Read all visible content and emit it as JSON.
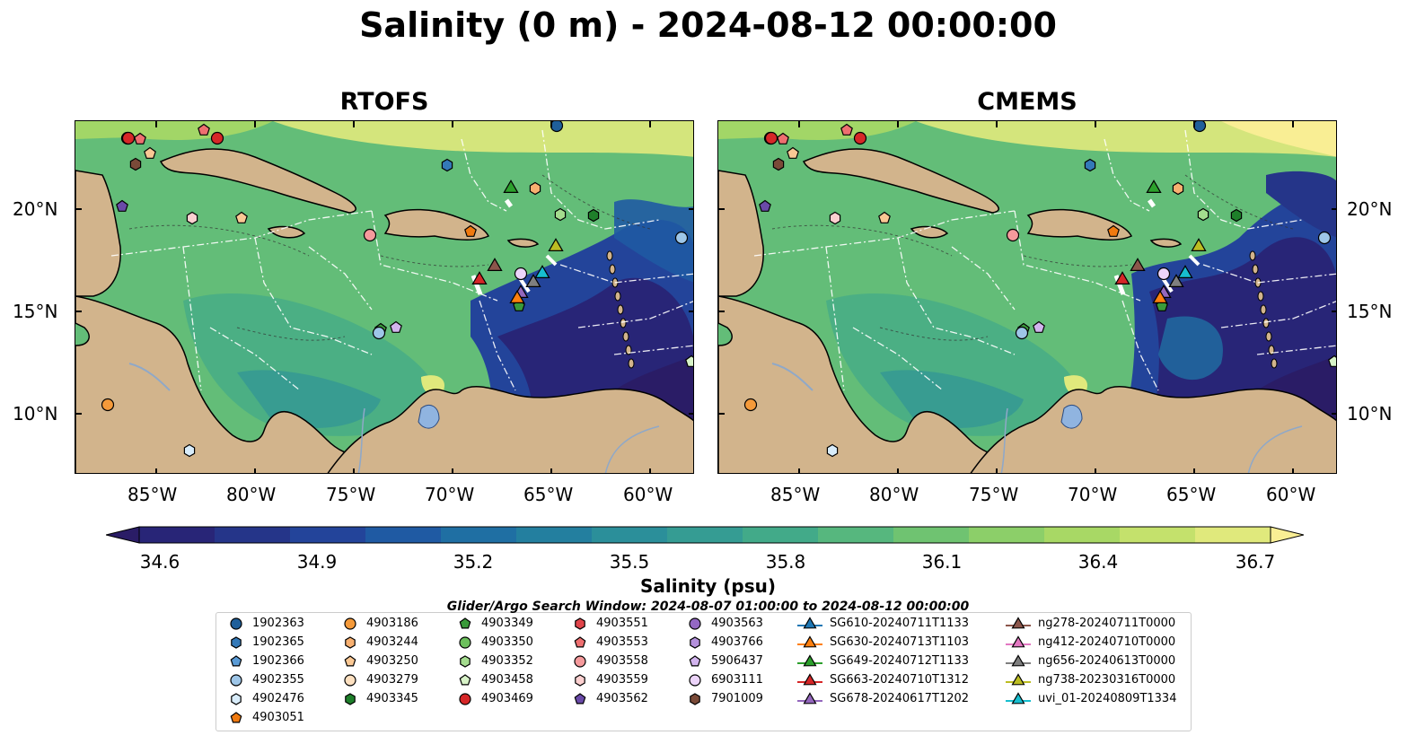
{
  "title": "Salinity (0 m) - 2024-08-12 00:00:00",
  "panels": [
    {
      "title": "RTOFS"
    },
    {
      "title": "CMEMS"
    }
  ],
  "lat_ticks": [
    "20°N",
    "15°N",
    "10°N"
  ],
  "lon_ticks": [
    "85°W",
    "80°W",
    "75°W",
    "70°W",
    "65°W",
    "60°W"
  ],
  "colorbar": {
    "label": "Salinity (psu)",
    "ticks": [
      "34.6",
      "34.9",
      "35.2",
      "35.5",
      "35.8",
      "36.1",
      "36.4",
      "36.7"
    ],
    "colors": [
      "#2a1c66",
      "#282577",
      "#253589",
      "#23449a",
      "#1f5aa3",
      "#1f6fa3",
      "#237f9f",
      "#2b8f9a",
      "#359c93",
      "#42aa89",
      "#56b77e",
      "#6fc371",
      "#8ccf69",
      "#a8d865",
      "#c4e16c",
      "#e0e97c",
      "#f9ee94"
    ]
  },
  "legend": {
    "title": "Glider/Argo Search Window: 2024-08-07 01:00:00 to 2024-08-12 00:00:00",
    "items": [
      {
        "label": "1902363",
        "shape": "circle",
        "color": "#1f5f9a"
      },
      {
        "label": "1902365",
        "shape": "hexagon",
        "color": "#3479b8"
      },
      {
        "label": "1902366",
        "shape": "pentagon",
        "color": "#5a9bd6"
      },
      {
        "label": "4902355",
        "shape": "circle",
        "color": "#9ec6e8"
      },
      {
        "label": "4902476",
        "shape": "hexagon",
        "color": "#d8ecfa"
      },
      {
        "label": "4903051",
        "shape": "pentagon",
        "color": "#f07a10"
      },
      {
        "label": "4903186",
        "shape": "circle",
        "color": "#f59a3a"
      },
      {
        "label": "4903244",
        "shape": "hexagon",
        "color": "#f8b070"
      },
      {
        "label": "4903250",
        "shape": "pentagon",
        "color": "#fac894"
      },
      {
        "label": "4903279",
        "shape": "circle",
        "color": "#fde0c0"
      },
      {
        "label": "4903345",
        "shape": "hexagon",
        "color": "#1e7f2a"
      },
      {
        "label": "4903349",
        "shape": "pentagon",
        "color": "#3a9a3a"
      },
      {
        "label": "4903350",
        "shape": "circle",
        "color": "#6cc05c"
      },
      {
        "label": "4903352",
        "shape": "hexagon",
        "color": "#a4dc8e"
      },
      {
        "label": "4903458",
        "shape": "pentagon",
        "color": "#d8f3c8"
      },
      {
        "label": "4903469",
        "shape": "circle",
        "color": "#d62728"
      },
      {
        "label": "4903551",
        "shape": "hexagon",
        "color": "#e0444a"
      },
      {
        "label": "4903553",
        "shape": "pentagon",
        "color": "#ee6f70"
      },
      {
        "label": "4903558",
        "shape": "circle",
        "color": "#f59a9c"
      },
      {
        "label": "4903559",
        "shape": "hexagon",
        "color": "#fcd0d0"
      },
      {
        "label": "4903562",
        "shape": "pentagon",
        "color": "#6a4aa8"
      },
      {
        "label": "4903563",
        "shape": "circle",
        "color": "#9468c4"
      },
      {
        "label": "4903766",
        "shape": "hexagon",
        "color": "#b490dc"
      },
      {
        "label": "5906437",
        "shape": "pentagon",
        "color": "#d2b4ee"
      },
      {
        "label": "6903111",
        "shape": "circle",
        "color": "#ecd4fa"
      },
      {
        "label": "7901009",
        "shape": "hexagon",
        "color": "#7a4a38"
      },
      {
        "label": "SG610-20240711T1133",
        "shape": "triangle",
        "color": "#1f77b4"
      },
      {
        "label": "SG630-20240713T1103",
        "shape": "triangle",
        "color": "#ff7f0e"
      },
      {
        "label": "SG649-20240712T1133",
        "shape": "triangle",
        "color": "#2ca02c"
      },
      {
        "label": "SG663-20240710T1312",
        "shape": "triangle",
        "color": "#d62728"
      },
      {
        "label": "SG678-20240617T1202",
        "shape": "triangle",
        "color": "#9467bd"
      },
      {
        "label": "ng278-20240711T0000",
        "shape": "triangle",
        "color": "#8c564b"
      },
      {
        "label": "ng412-20240710T0000",
        "shape": "triangle",
        "color": "#e377c2"
      },
      {
        "label": "ng656-20240613T0000",
        "shape": "triangle",
        "color": "#7f7f7f"
      },
      {
        "label": "ng738-20230316T0000",
        "shape": "triangle",
        "color": "#bcbd22"
      },
      {
        "label": "uvi_01-20240809T1334",
        "shape": "triangle",
        "color": "#17becf"
      }
    ]
  }
}
